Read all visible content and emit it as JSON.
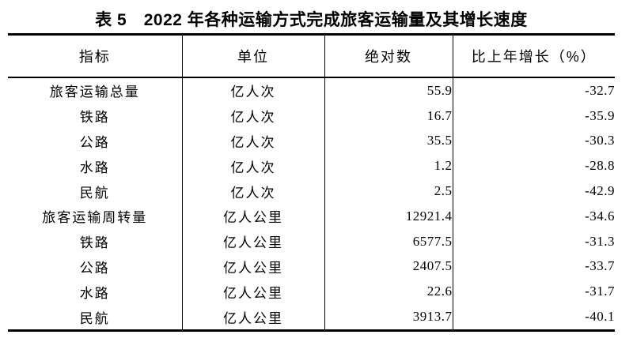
{
  "title": "表 5　2022 年各种运输方式完成旅客运输量及其增长速度",
  "colors": {
    "background": "#ffffff",
    "text": "#000000",
    "rule": "#000000"
  },
  "table": {
    "columns": [
      "指标",
      "单位",
      "绝对数",
      "比上年增长（%）"
    ],
    "rows": [
      {
        "indicator": "旅客运输总量",
        "unit": "亿人次",
        "absolute": "55.9",
        "growth": "-32.7"
      },
      {
        "indicator": "铁路",
        "unit": "亿人次",
        "absolute": "16.7",
        "growth": "-35.9"
      },
      {
        "indicator": "公路",
        "unit": "亿人次",
        "absolute": "35.5",
        "growth": "-30.3"
      },
      {
        "indicator": "水路",
        "unit": "亿人次",
        "absolute": "1.2",
        "growth": "-28.8"
      },
      {
        "indicator": "民航",
        "unit": "亿人次",
        "absolute": "2.5",
        "growth": "-42.9"
      },
      {
        "indicator": "旅客运输周转量",
        "unit": "亿人公里",
        "absolute": "12921.4",
        "growth": "-34.6"
      },
      {
        "indicator": "铁路",
        "unit": "亿人公里",
        "absolute": "6577.5",
        "growth": "-31.3"
      },
      {
        "indicator": "公路",
        "unit": "亿人公里",
        "absolute": "2407.5",
        "growth": "-33.7"
      },
      {
        "indicator": "水路",
        "unit": "亿人公里",
        "absolute": "22.6",
        "growth": "-31.7"
      },
      {
        "indicator": "民航",
        "unit": "亿人公里",
        "absolute": "3913.7",
        "growth": "-40.1"
      }
    ]
  }
}
